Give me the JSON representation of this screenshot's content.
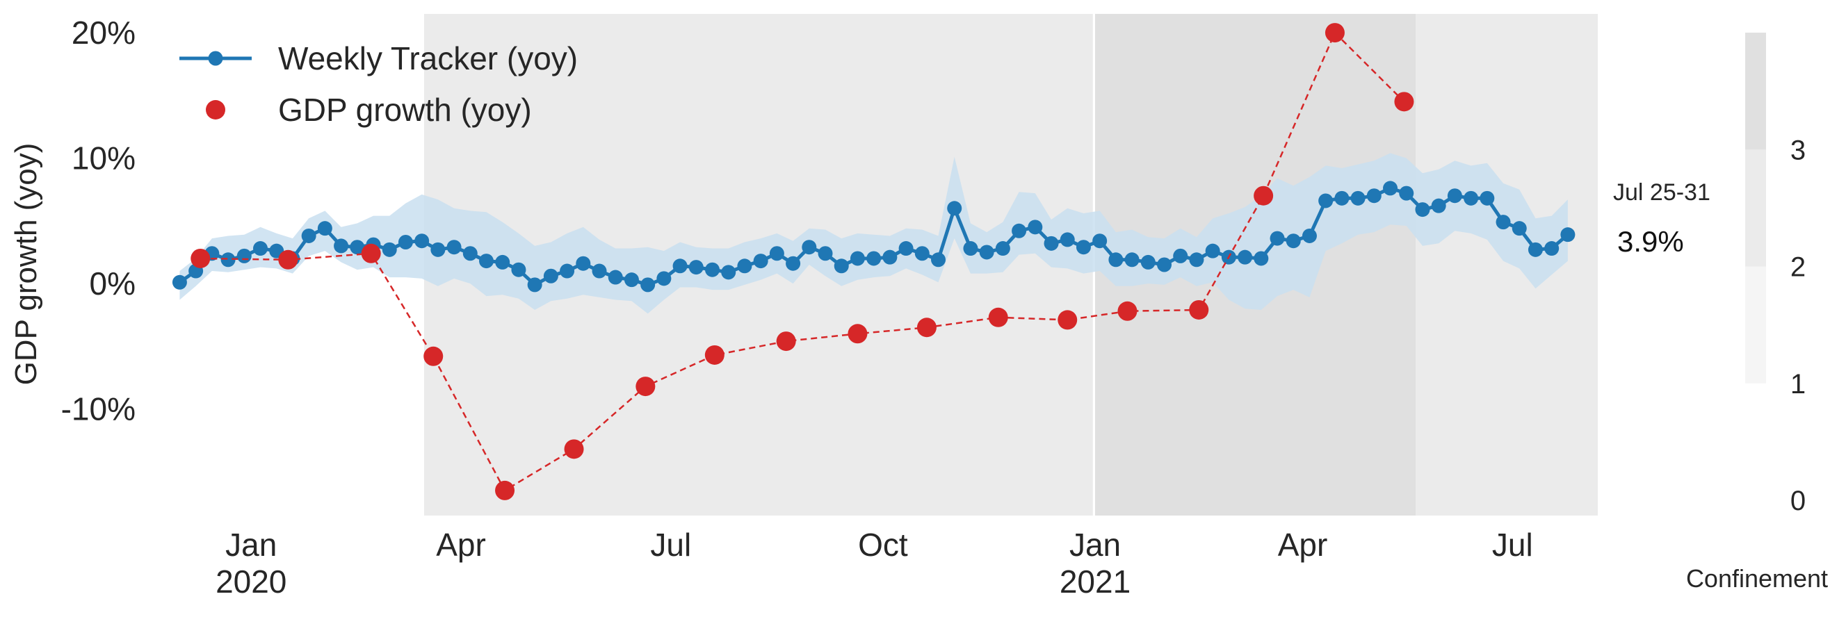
{
  "chart_data": {
    "type": "line",
    "title": "",
    "ylabel": "GDP growth (yoy)",
    "xlabel": "",
    "ylim": [
      -18.5,
      21.5
    ],
    "y_ticks": [
      {
        "value": 20,
        "label": "20%"
      },
      {
        "value": 10,
        "label": "10%"
      },
      {
        "value": 0,
        "label": "0%"
      },
      {
        "value": -10,
        "label": "-10%"
      }
    ],
    "x_range": [
      "2019-11-17",
      "2021-08-07"
    ],
    "x_ticks": [
      {
        "date": "2020-01-01",
        "label": "Jan",
        "sublabel": "2020"
      },
      {
        "date": "2020-04-01",
        "label": "Apr",
        "sublabel": ""
      },
      {
        "date": "2020-07-01",
        "label": "Jul",
        "sublabel": ""
      },
      {
        "date": "2020-10-01",
        "label": "Oct",
        "sublabel": ""
      },
      {
        "date": "2021-01-01",
        "label": "Jan",
        "sublabel": "2021"
      },
      {
        "date": "2021-04-01",
        "label": "Apr",
        "sublabel": ""
      },
      {
        "date": "2021-07-01",
        "label": "Jul",
        "sublabel": ""
      }
    ],
    "grid": false,
    "legend": {
      "position": "top-left",
      "entries": [
        {
          "label": "Weekly Tracker (yoy)",
          "color": "#1f77b4",
          "style": "line-marker"
        },
        {
          "label": "GDP growth (yoy)",
          "color": "#d62728",
          "style": "marker"
        }
      ]
    },
    "confinement_bands": [
      {
        "start": "2020-03-16",
        "end": "2020-12-31",
        "level": 2
      },
      {
        "start": "2021-01-01",
        "end": "2021-05-20",
        "level": 3
      },
      {
        "start": "2021-05-20",
        "end": "2021-08-07",
        "level": 2
      }
    ],
    "confinement_colorbar": {
      "label": "Confinement",
      "ticks": [
        0,
        1,
        2,
        3
      ],
      "range": [
        0,
        4
      ],
      "segments": [
        {
          "from": 1,
          "to": 2,
          "color": "#f5f5f5"
        },
        {
          "from": 2,
          "to": 3,
          "color": "#ebebeb"
        },
        {
          "from": 3,
          "to": 4,
          "color": "#e0e0e0"
        }
      ]
    },
    "annotation": {
      "period": "Jul 25-31",
      "value": "3.9%"
    },
    "series": [
      {
        "name": "Weekly Tracker (yoy)",
        "color": "#1f77b4",
        "band_color": "#c9dff0",
        "start_date": "2019-12-01",
        "step_days": 7,
        "values": [
          0.1,
          1.0,
          2.4,
          1.9,
          2.2,
          2.8,
          2.6,
          2.0,
          3.8,
          4.4,
          3.0,
          2.9,
          3.1,
          2.7,
          3.3,
          3.4,
          2.7,
          2.9,
          2.4,
          1.8,
          1.7,
          1.1,
          -0.1,
          0.6,
          1.0,
          1.6,
          1.0,
          0.5,
          0.3,
          -0.1,
          0.4,
          1.4,
          1.3,
          1.1,
          0.9,
          1.4,
          1.8,
          2.4,
          1.6,
          2.9,
          2.4,
          1.4,
          2.0,
          2.0,
          2.1,
          2.8,
          2.4,
          1.9,
          6.0,
          2.8,
          2.5,
          2.8,
          4.2,
          4.5,
          3.2,
          3.5,
          2.9,
          3.4,
          1.9,
          1.9,
          1.7,
          1.5,
          2.2,
          1.9,
          2.6,
          2.1,
          2.1,
          2.0,
          3.6,
          3.4,
          3.8,
          6.6,
          6.8,
          6.8,
          7.0,
          7.6,
          7.2,
          5.9,
          6.2,
          7.0,
          6.8,
          6.8,
          4.9,
          4.4,
          2.7,
          2.8,
          3.9
        ],
        "upper": [
          1.0,
          2.0,
          3.6,
          3.8,
          3.9,
          4.5,
          4.0,
          3.6,
          5.2,
          5.8,
          4.5,
          4.8,
          5.4,
          5.4,
          6.4,
          7.1,
          6.7,
          6.0,
          5.8,
          5.7,
          4.9,
          4.0,
          3.0,
          3.3,
          4.0,
          4.5,
          3.5,
          2.8,
          2.8,
          2.9,
          2.6,
          3.3,
          2.9,
          2.8,
          2.8,
          3.3,
          3.6,
          4.0,
          3.4,
          4.4,
          4.3,
          3.6,
          4.0,
          3.9,
          3.8,
          4.4,
          4.3,
          3.8,
          10.1,
          4.8,
          4.1,
          4.9,
          7.3,
          7.2,
          5.1,
          6.0,
          5.6,
          5.8,
          4.1,
          4.3,
          3.7,
          3.6,
          4.4,
          3.7,
          5.2,
          5.6,
          6.1,
          7.0,
          8.4,
          7.8,
          8.5,
          9.4,
          9.2,
          9.5,
          9.8,
          10.4,
          10.0,
          8.8,
          9.1,
          9.8,
          9.4,
          9.6,
          8.0,
          7.5,
          5.2,
          5.4,
          6.7
        ],
        "lower": [
          -1.3,
          -0.2,
          1.0,
          0.9,
          1.1,
          1.3,
          1.2,
          0.8,
          2.2,
          2.6,
          1.7,
          1.1,
          1.3,
          0.5,
          0.5,
          0.4,
          -0.2,
          0.4,
          0.0,
          -1.0,
          -0.9,
          -1.2,
          -2.1,
          -1.4,
          -1.2,
          -0.9,
          -1.1,
          -1.3,
          -1.4,
          -2.4,
          -1.3,
          -0.3,
          -0.3,
          -0.5,
          -0.5,
          -0.1,
          0.3,
          0.8,
          0.0,
          1.5,
          0.6,
          -0.2,
          0.3,
          0.5,
          0.6,
          1.2,
          0.7,
          0.1,
          3.6,
          0.8,
          0.8,
          0.9,
          2.3,
          2.4,
          1.3,
          1.2,
          0.8,
          1.0,
          -0.2,
          -0.2,
          0.0,
          -0.1,
          0.5,
          -0.2,
          0.1,
          -1.3,
          -2.0,
          -2.1,
          -1.0,
          -0.5,
          -1.1,
          2.6,
          3.2,
          3.9,
          4.1,
          4.7,
          4.6,
          3.0,
          3.2,
          4.2,
          4.0,
          3.5,
          1.8,
          1.2,
          -0.4,
          0.7,
          1.8
        ]
      },
      {
        "name": "GDP growth (yoy)",
        "color": "#d62728",
        "points": [
          {
            "date": "2019-12-10",
            "value": 2.0
          },
          {
            "date": "2020-01-17",
            "value": 1.9
          },
          {
            "date": "2020-02-22",
            "value": 2.4
          },
          {
            "date": "2020-03-20",
            "value": -5.8
          },
          {
            "date": "2020-04-20",
            "value": -16.5
          },
          {
            "date": "2020-05-20",
            "value": -13.2
          },
          {
            "date": "2020-06-20",
            "value": -8.2
          },
          {
            "date": "2020-07-20",
            "value": -5.7
          },
          {
            "date": "2020-08-20",
            "value": -4.6
          },
          {
            "date": "2020-09-20",
            "value": -4.0
          },
          {
            "date": "2020-10-20",
            "value": -3.5
          },
          {
            "date": "2020-11-20",
            "value": -2.7
          },
          {
            "date": "2020-12-20",
            "value": -2.9
          },
          {
            "date": "2021-01-15",
            "value": -2.2
          },
          {
            "date": "2021-02-15",
            "value": -2.1
          },
          {
            "date": "2021-03-15",
            "value": 7.0
          },
          {
            "date": "2021-04-15",
            "value": 20.0
          },
          {
            "date": "2021-05-15",
            "value": 14.5
          }
        ]
      }
    ]
  }
}
